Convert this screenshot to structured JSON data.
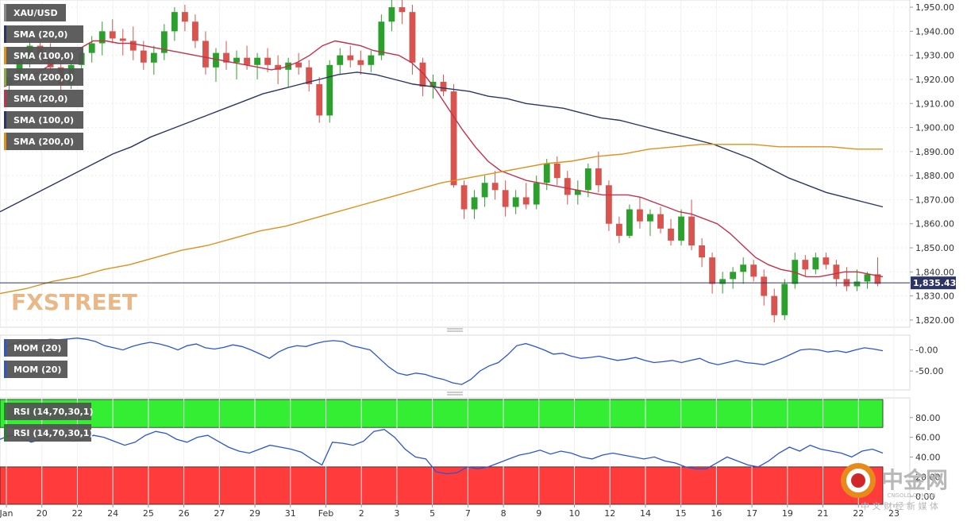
{
  "colors": {
    "bull": "#2ca02c",
    "bear": "#d9534f",
    "sma20": "#c2324a",
    "sma100": "#2c3566",
    "sma200": "#e0901a",
    "mom": "#2b55d6",
    "rsi": "#2b55d6",
    "overbought": "#33ee33",
    "oversold": "#ff3b3b",
    "label_bg": "#555555"
  },
  "legend": {
    "main": [
      "XAU/USD",
      "SMA (20,0)",
      "SMA (100,0)",
      "SMA (200,0)",
      "SMA (20,0)",
      "SMA (100,0)",
      "SMA (200,0)"
    ],
    "mom": [
      "MOM (20)",
      "MOM (20)"
    ],
    "rsi": [
      "RSI (14,70,30,1)",
      "RSI (14,70,30,1)"
    ]
  },
  "price_tag": "1,835.43",
  "watermark": "FXSTREET",
  "footer_logo": {
    "title": "中金网",
    "site": "CNGOLD.COM.CN",
    "tagline": "中 文 财 经 新 媒 体"
  },
  "chart_data": [
    {
      "type": "candlestick",
      "title": "XAU/USD",
      "timeframe_ticks": [
        "Jan",
        "20",
        "22",
        "24",
        "25",
        "26",
        "27",
        "29",
        "31",
        "Feb",
        "2",
        "3",
        "5",
        "7",
        "8",
        "9",
        "10",
        "12",
        "14",
        "15",
        "16",
        "17",
        "19",
        "21",
        "22",
        "23"
      ],
      "y_ticks": [
        "1,820.00",
        "1,830.00",
        "1,840.00",
        "1,850.00",
        "1,860.00",
        "1,870.00",
        "1,880.00",
        "1,890.00",
        "1,900.00",
        "1,910.00",
        "1,920.00",
        "1,930.00",
        "1,940.00",
        "1,950.00"
      ],
      "ylim": [
        1817,
        1953
      ],
      "last_price": 1835.43,
      "ohlc": [
        [
          1918,
          1924,
          1912,
          1921
        ],
        [
          1921,
          1930,
          1918,
          1928
        ],
        [
          1928,
          1937,
          1925,
          1934
        ],
        [
          1934,
          1938,
          1928,
          1930
        ],
        [
          1930,
          1935,
          1922,
          1925
        ],
        [
          1925,
          1930,
          1912,
          1918
        ],
        [
          1918,
          1928,
          1916,
          1926
        ],
        [
          1926,
          1933,
          1924,
          1931
        ],
        [
          1931,
          1938,
          1927,
          1935
        ],
        [
          1935,
          1944,
          1930,
          1940
        ],
        [
          1940,
          1945,
          1935,
          1937
        ],
        [
          1937,
          1941,
          1930,
          1936
        ],
        [
          1936,
          1942,
          1928,
          1932
        ],
        [
          1932,
          1936,
          1924,
          1927
        ],
        [
          1927,
          1934,
          1922,
          1931
        ],
        [
          1931,
          1943,
          1928,
          1940
        ],
        [
          1940,
          1950,
          1936,
          1948
        ],
        [
          1948,
          1951,
          1940,
          1944
        ],
        [
          1944,
          1947,
          1933,
          1936
        ],
        [
          1936,
          1940,
          1922,
          1925
        ],
        [
          1925,
          1933,
          1919,
          1931
        ],
        [
          1931,
          1936,
          1924,
          1927
        ],
        [
          1927,
          1932,
          1920,
          1929
        ],
        [
          1929,
          1934,
          1924,
          1926
        ],
        [
          1926,
          1931,
          1920,
          1929
        ],
        [
          1929,
          1933,
          1923,
          1926
        ],
        [
          1926,
          1930,
          1918,
          1924
        ],
        [
          1924,
          1929,
          1917,
          1927
        ],
        [
          1927,
          1931,
          1922,
          1925
        ],
        [
          1925,
          1928,
          1915,
          1918
        ],
        [
          1918,
          1921,
          1902,
          1905
        ],
        [
          1905,
          1928,
          1902,
          1926
        ],
        [
          1926,
          1933,
          1922,
          1930
        ],
        [
          1930,
          1934,
          1925,
          1928
        ],
        [
          1928,
          1932,
          1922,
          1926
        ],
        [
          1926,
          1932,
          1923,
          1930
        ],
        [
          1930,
          1947,
          1928,
          1944
        ],
        [
          1944,
          1954,
          1940,
          1950
        ],
        [
          1950,
          1953,
          1943,
          1948
        ],
        [
          1948,
          1951,
          1922,
          1927
        ],
        [
          1927,
          1929,
          1913,
          1917
        ],
        [
          1917,
          1922,
          1912,
          1919
        ],
        [
          1919,
          1922,
          1913,
          1915
        ],
        [
          1915,
          1918,
          1875,
          1876
        ],
        [
          1876,
          1878,
          1862,
          1866
        ],
        [
          1866,
          1874,
          1862,
          1871
        ],
        [
          1871,
          1880,
          1867,
          1877
        ],
        [
          1877,
          1882,
          1870,
          1874
        ],
        [
          1874,
          1878,
          1863,
          1867
        ],
        [
          1867,
          1874,
          1864,
          1871
        ],
        [
          1871,
          1877,
          1866,
          1868
        ],
        [
          1868,
          1880,
          1866,
          1877
        ],
        [
          1877,
          1887,
          1874,
          1885
        ],
        [
          1885,
          1888,
          1876,
          1879
        ],
        [
          1879,
          1882,
          1868,
          1872
        ],
        [
          1872,
          1878,
          1868,
          1874
        ],
        [
          1874,
          1885,
          1871,
          1883
        ],
        [
          1883,
          1890,
          1873,
          1876
        ],
        [
          1876,
          1878,
          1857,
          1860
        ],
        [
          1860,
          1863,
          1852,
          1855
        ],
        [
          1855,
          1868,
          1854,
          1866
        ],
        [
          1866,
          1871,
          1858,
          1861
        ],
        [
          1861,
          1866,
          1855,
          1864
        ],
        [
          1864,
          1867,
          1856,
          1858
        ],
        [
          1858,
          1862,
          1851,
          1853
        ],
        [
          1853,
          1866,
          1851,
          1863
        ],
        [
          1863,
          1870,
          1849,
          1851
        ],
        [
          1851,
          1854,
          1842,
          1846
        ],
        [
          1846,
          1848,
          1831,
          1835
        ],
        [
          1835,
          1840,
          1831,
          1837
        ],
        [
          1837,
          1842,
          1833,
          1840
        ],
        [
          1840,
          1846,
          1835,
          1843
        ],
        [
          1843,
          1845,
          1836,
          1838
        ],
        [
          1838,
          1841,
          1826,
          1830
        ],
        [
          1830,
          1833,
          1819,
          1822
        ],
        [
          1822,
          1837,
          1820,
          1835
        ],
        [
          1835,
          1848,
          1833,
          1845
        ],
        [
          1845,
          1847,
          1838,
          1841
        ],
        [
          1841,
          1848,
          1839,
          1846
        ],
        [
          1846,
          1848,
          1841,
          1843
        ],
        [
          1843,
          1845,
          1834,
          1837
        ],
        [
          1837,
          1842,
          1832,
          1834
        ],
        [
          1834,
          1841,
          1832,
          1836
        ],
        [
          1836,
          1840,
          1833,
          1839
        ],
        [
          1839,
          1846,
          1834,
          1835
        ]
      ],
      "series": [
        {
          "name": "SMA (20,0)",
          "values": [
            1917,
            1919,
            1921,
            1924,
            1927,
            1930,
            1933,
            1936,
            1936,
            1935,
            1935,
            1934,
            1933,
            1932,
            1931,
            1930,
            1929,
            1928,
            1927,
            1926,
            1925,
            1924,
            1925,
            1927,
            1930,
            1934,
            1936,
            1935,
            1934,
            1932,
            1931,
            1930,
            1927,
            1922,
            1915,
            1907,
            1899,
            1892,
            1886,
            1882,
            1880,
            1878,
            1877,
            1876,
            1875,
            1874,
            1873,
            1872,
            1872,
            1872,
            1871,
            1869,
            1867,
            1865,
            1864,
            1862,
            1860,
            1856,
            1851,
            1846,
            1843,
            1841,
            1840,
            1838,
            1838,
            1839,
            1840,
            1840,
            1839,
            1838
          ]
        },
        {
          "name": "SMA (100,0)",
          "values": [
            1865,
            1869,
            1873,
            1877,
            1881,
            1885,
            1889,
            1892,
            1896,
            1899,
            1902,
            1905,
            1908,
            1911,
            1914,
            1916,
            1918,
            1920,
            1922,
            1923,
            1922,
            1920,
            1918,
            1917,
            1916,
            1915,
            1913,
            1912,
            1910,
            1909,
            1908,
            1906,
            1904,
            1903,
            1901,
            1899,
            1897,
            1895,
            1893,
            1890,
            1887,
            1883,
            1879,
            1876,
            1873,
            1871,
            1869,
            1867
          ]
        },
        {
          "name": "SMA (200,0)",
          "values": [
            1831,
            1833,
            1836,
            1838,
            1841,
            1843,
            1846,
            1849,
            1851,
            1854,
            1857,
            1859,
            1862,
            1865,
            1868,
            1871,
            1874,
            1877,
            1879,
            1881,
            1883,
            1885,
            1886,
            1888,
            1889,
            1891,
            1892,
            1893,
            1893,
            1893,
            1892,
            1892,
            1892,
            1891,
            1891
          ]
        }
      ]
    },
    {
      "type": "line",
      "title": "MOM (20)",
      "y_ticks": [
        "-0.00",
        "-50.00"
      ],
      "ylim": [
        -95,
        35
      ],
      "series": [
        {
          "name": "MOM (20)",
          "values": [
            5,
            15,
            20,
            18,
            22,
            25,
            24,
            26,
            28,
            25,
            20,
            10,
            5,
            0,
            8,
            14,
            18,
            14,
            8,
            0,
            10,
            14,
            5,
            2,
            6,
            12,
            8,
            0,
            -10,
            -20,
            -5,
            5,
            10,
            8,
            15,
            20,
            22,
            20,
            10,
            5,
            0,
            -20,
            -40,
            -55,
            -60,
            -55,
            -58,
            -65,
            -70,
            -78,
            -82,
            -70,
            -50,
            -38,
            -30,
            -12,
            10,
            15,
            8,
            0,
            -10,
            -8,
            -15,
            -20,
            -18,
            -15,
            -20,
            -25,
            -22,
            -18,
            -25,
            -30,
            -28,
            -25,
            -30,
            -25,
            -20,
            -30,
            -35,
            -30,
            -25,
            -30,
            -32,
            -35,
            -28,
            -20,
            -10,
            0,
            2,
            0,
            -5,
            -2,
            -6,
            0,
            5,
            2,
            -2
          ]
        }
      ]
    },
    {
      "type": "line",
      "title": "RSI (14,70,30,1)",
      "y_ticks": [
        "80.00",
        "60.00",
        "40.00",
        "20.00",
        "0.00"
      ],
      "ylim": [
        -8,
        100
      ],
      "overbought": 70,
      "oversold": 30,
      "series": [
        {
          "name": "RSI (14,70,30,1)",
          "values": [
            58,
            62,
            60,
            55,
            58,
            64,
            62,
            56,
            58,
            62,
            60,
            56,
            52,
            55,
            62,
            66,
            64,
            58,
            55,
            60,
            62,
            56,
            50,
            46,
            44,
            48,
            52,
            50,
            48,
            45,
            38,
            32,
            55,
            54,
            52,
            56,
            66,
            68,
            60,
            48,
            40,
            38,
            25,
            23,
            24,
            30,
            28,
            30,
            34,
            38,
            42,
            44,
            47,
            43,
            46,
            44,
            40,
            38,
            42,
            44,
            42,
            40,
            38,
            40,
            36,
            34,
            30,
            28,
            28,
            34,
            40,
            36,
            32,
            30,
            36,
            44,
            50,
            46,
            52,
            48,
            46,
            44,
            40,
            46,
            48,
            44
          ]
        }
      ]
    }
  ]
}
